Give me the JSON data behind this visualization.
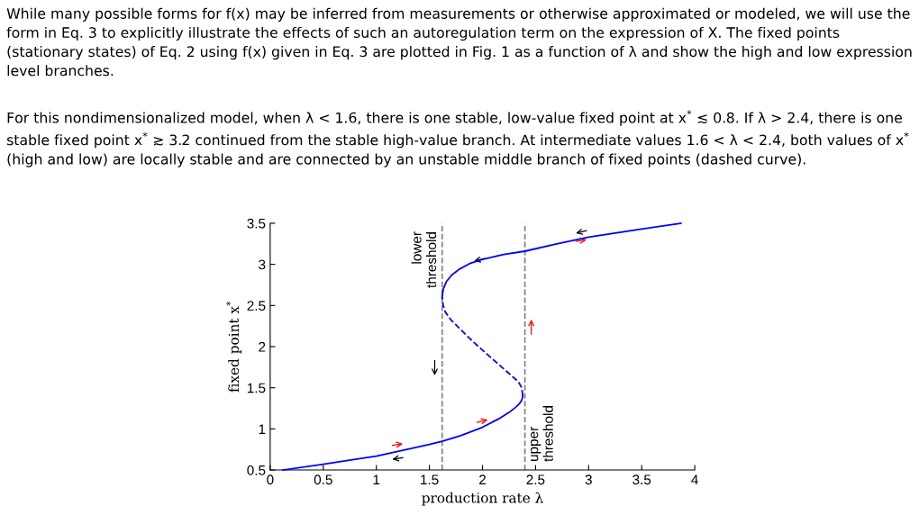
{
  "chart_data": {
    "type": "line",
    "xlabel": "production rate λ",
    "ylabel": "fixed point x$^{*}$",
    "xlim": [
      0,
      4
    ],
    "ylim": [
      0.5,
      3.5
    ],
    "xticks": [
      0,
      0.5,
      1,
      1.5,
      2,
      2.5,
      3,
      3.5,
      4
    ],
    "yticks": [
      0.5,
      1,
      1.5,
      2,
      2.5,
      3,
      3.5
    ],
    "grid": false,
    "legend": false,
    "marker": "none",
    "series": [
      {
        "color": "#0000ff",
        "line_style": "solid",
        "x": [
          0.12,
          0.5,
          1.0,
          1.5,
          1.62,
          1.8,
          2.0,
          2.15,
          2.25,
          2.31,
          2.35,
          2.37,
          2.38
        ],
        "values": [
          0.5,
          0.57,
          0.67,
          0.81,
          0.85,
          0.92,
          1.02,
          1.12,
          1.2,
          1.26,
          1.31,
          1.35,
          1.4
        ]
      },
      {
        "color": "#0000ff",
        "line_style": "dashed",
        "x": [
          2.38,
          2.37,
          2.34,
          2.28,
          2.2,
          2.05,
          1.92,
          1.8,
          1.7,
          1.65,
          1.63,
          1.62
        ],
        "values": [
          1.4,
          1.5,
          1.57,
          1.64,
          1.73,
          1.9,
          2.05,
          2.2,
          2.33,
          2.42,
          2.5,
          2.6
        ]
      },
      {
        "color": "#0000ff",
        "line_style": "solid",
        "x": [
          1.62,
          1.63,
          1.66,
          1.71,
          1.78,
          1.88,
          2.0,
          2.2,
          2.4,
          2.7,
          3.0,
          3.5,
          3.87
        ],
        "values": [
          2.6,
          2.7,
          2.79,
          2.87,
          2.94,
          3.01,
          3.06,
          3.12,
          3.16,
          3.25,
          3.33,
          3.43,
          3.5
        ]
      }
    ],
    "ref_lines": [
      {
        "axis": "x",
        "value": 1.62,
        "label": "lower\nthreshold",
        "color": "#808080",
        "line_style": "dashed"
      },
      {
        "axis": "x",
        "value": 2.4,
        "label": "upper\nthreshold",
        "color": "#808080",
        "line_style": "dashed"
      }
    ],
    "annotations": [
      "While many possible forms for f(x) may be inferred from measurements or otherwise approximated or modeled, we will use the form in Eq. 3 to explicitly illustrate the effects of such an autoregulation term on the expression of X. The fixed points (stationary states) of Eq. 2 using f(x) given in Eq. 3 are plotted in Fig. 1 as a function of λ and show the high and low expression level branches.",
      "For this nondimensionalized model, when λ < 1.6, there is one stable, low-value fixed point at x$^{*}$ ≲ 0.8. If λ > 2.4, there is one stable fixed point x$^{*}$ ≳ 3.2 continued from the stable high-value branch. At intermediate values 1.6 < λ < 2.4, both values of x$^{*}$ (high and low) are locally stable and are connected by an unstable middle branch of fixed points (dashed curve)."
    ]
  }
}
